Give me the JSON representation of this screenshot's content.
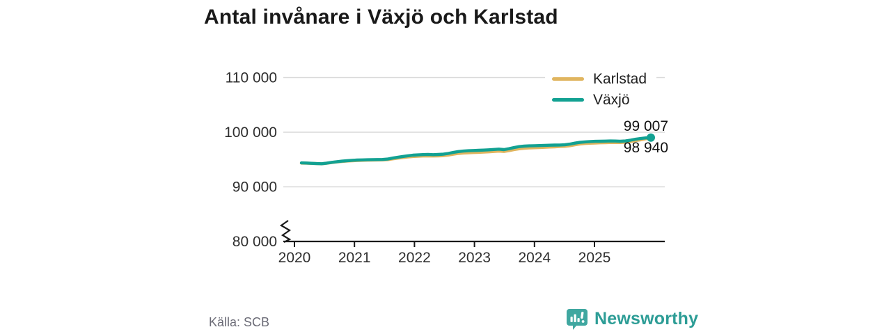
{
  "page": {
    "title": "Antal invånare i Växjö och Karlstad",
    "source_label": "Källa: SCB",
    "brand_name": "Newsworthy",
    "brand_color": "#2d9d96"
  },
  "chart_data": {
    "type": "line",
    "title": "Antal invånare i Växjö och Karlstad",
    "xlabel": "",
    "ylabel": "",
    "grid": "horizontal",
    "legend_position": "top-right",
    "axis_break": true,
    "ylim": [
      80000,
      110000
    ],
    "yticks": [
      {
        "label": "110 000",
        "value": 110000
      },
      {
        "label": "100 000",
        "value": 100000
      },
      {
        "label": "90 000",
        "value": 90000
      },
      {
        "label": "80 000",
        "value": 80000
      }
    ],
    "xticks": [
      {
        "label": "2020",
        "value": 2020
      },
      {
        "label": "2021",
        "value": 2021
      },
      {
        "label": "2022",
        "value": 2022
      },
      {
        "label": "2023",
        "value": 2023
      },
      {
        "label": "2024",
        "value": 2024
      },
      {
        "label": "2025",
        "value": 2025
      }
    ],
    "x": [
      "2020-02",
      "2020-03",
      "2020-04",
      "2020-05",
      "2020-06",
      "2020-07",
      "2020-08",
      "2020-09",
      "2020-10",
      "2020-11",
      "2020-12",
      "2021-01",
      "2021-02",
      "2021-03",
      "2021-04",
      "2021-05",
      "2021-06",
      "2021-07",
      "2021-08",
      "2021-09",
      "2021-10",
      "2021-11",
      "2021-12",
      "2022-01",
      "2022-02",
      "2022-03",
      "2022-04",
      "2022-05",
      "2022-06",
      "2022-07",
      "2022-08",
      "2022-09",
      "2022-10",
      "2022-11",
      "2022-12",
      "2023-01",
      "2023-02",
      "2023-03",
      "2023-04",
      "2023-05",
      "2023-06",
      "2023-07",
      "2023-08",
      "2023-09",
      "2023-10",
      "2023-11",
      "2023-12",
      "2024-01",
      "2024-02",
      "2024-03",
      "2024-04",
      "2024-05",
      "2024-06",
      "2024-07",
      "2024-08",
      "2024-09",
      "2024-10",
      "2024-11",
      "2024-12",
      "2025-01",
      "2025-02",
      "2025-03",
      "2025-04",
      "2025-05",
      "2025-06",
      "2025-07",
      "2025-08",
      "2025-09",
      "2025-10",
      "2025-11"
    ],
    "series": [
      {
        "name": "Karlstad",
        "color": "#e0b55f",
        "end_label": "98 940",
        "end_value": 98940,
        "end_marker": false,
        "values": [
          94350,
          94330,
          94290,
          94250,
          94220,
          94320,
          94450,
          94560,
          94650,
          94720,
          94780,
          94820,
          94850,
          94880,
          94900,
          94920,
          94930,
          94980,
          95120,
          95250,
          95360,
          95460,
          95550,
          95600,
          95640,
          95670,
          95640,
          95660,
          95710,
          95820,
          95980,
          96110,
          96190,
          96240,
          96280,
          96320,
          96360,
          96410,
          96470,
          96530,
          96470,
          96620,
          96820,
          96970,
          97060,
          97120,
          97160,
          97200,
          97240,
          97290,
          97330,
          97370,
          97420,
          97530,
          97700,
          97840,
          97930,
          97990,
          98030,
          98060,
          98090,
          98120,
          98130,
          98110,
          98170,
          98310,
          98470,
          98610,
          98790,
          98940
        ]
      },
      {
        "name": "Växjö",
        "color": "#12a192",
        "end_label": "99 007",
        "end_value": 99007,
        "end_marker": true,
        "values": [
          94380,
          94360,
          94310,
          94260,
          94230,
          94340,
          94480,
          94600,
          94700,
          94780,
          94850,
          94900,
          94930,
          94960,
          94980,
          95000,
          95010,
          95080,
          95260,
          95420,
          95550,
          95680,
          95790,
          95850,
          95900,
          95940,
          95890,
          95920,
          95980,
          96120,
          96310,
          96460,
          96550,
          96610,
          96650,
          96690,
          96730,
          96780,
          96840,
          96900,
          96810,
          96980,
          97200,
          97360,
          97450,
          97500,
          97530,
          97560,
          97590,
          97620,
          97640,
          97660,
          97700,
          97820,
          98000,
          98140,
          98230,
          98290,
          98330,
          98350,
          98370,
          98390,
          98380,
          98340,
          98400,
          98550,
          98720,
          98850,
          98950,
          99007
        ]
      }
    ]
  }
}
